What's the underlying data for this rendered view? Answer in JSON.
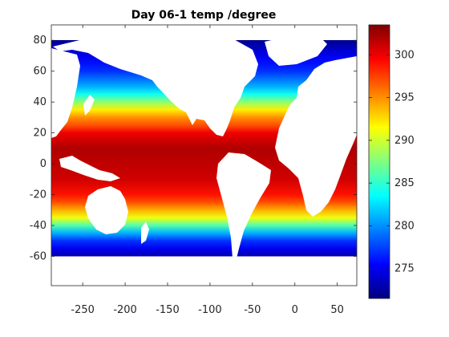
{
  "chart_data": {
    "type": "heatmap",
    "title": "Day 06-1 temp /degree",
    "xlabel": "",
    "ylabel": "",
    "xlim": [
      -287,
      73
    ],
    "ylim": [
      -79,
      90
    ],
    "xticks": [
      -250,
      -200,
      -150,
      -100,
      -50,
      0,
      50
    ],
    "xtick_labels": [
      "-250",
      "-200",
      "-150",
      "-100",
      "-50",
      "0",
      "50"
    ],
    "yticks": [
      -60,
      -40,
      -20,
      0,
      20,
      40,
      60,
      80
    ],
    "ytick_labels": [
      "-60",
      "-40",
      "-20",
      "0",
      "20",
      "40",
      "60",
      "80"
    ],
    "colorbar": {
      "range": [
        271.5,
        303.5
      ],
      "ticks": [
        275,
        280,
        285,
        290,
        295,
        300
      ],
      "tick_labels": [
        "275",
        "280",
        "285",
        "290",
        "295",
        "300"
      ],
      "colormap": "jet"
    },
    "data_range_lat": [
      -60,
      80
    ],
    "land_color": "#ffffff",
    "grid": false,
    "zonal_profile": [
      {
        "lat": -60,
        "value": 273
      },
      {
        "lat": -55,
        "value": 275
      },
      {
        "lat": -50,
        "value": 277
      },
      {
        "lat": -45,
        "value": 281
      },
      {
        "lat": -40,
        "value": 286
      },
      {
        "lat": -35,
        "value": 291
      },
      {
        "lat": -30,
        "value": 294
      },
      {
        "lat": -25,
        "value": 297
      },
      {
        "lat": -20,
        "value": 299
      },
      {
        "lat": -10,
        "value": 301
      },
      {
        "lat": 0,
        "value": 301.5
      },
      {
        "lat": 10,
        "value": 302
      },
      {
        "lat": 20,
        "value": 300
      },
      {
        "lat": 25,
        "value": 297
      },
      {
        "lat": 30,
        "value": 295
      },
      {
        "lat": 35,
        "value": 292
      },
      {
        "lat": 40,
        "value": 288
      },
      {
        "lat": 45,
        "value": 284
      },
      {
        "lat": 50,
        "value": 281
      },
      {
        "lat": 55,
        "value": 279
      },
      {
        "lat": 60,
        "value": 277
      },
      {
        "lat": 65,
        "value": 276
      },
      {
        "lat": 70,
        "value": 275
      },
      {
        "lat": 80,
        "value": 272
      }
    ]
  }
}
